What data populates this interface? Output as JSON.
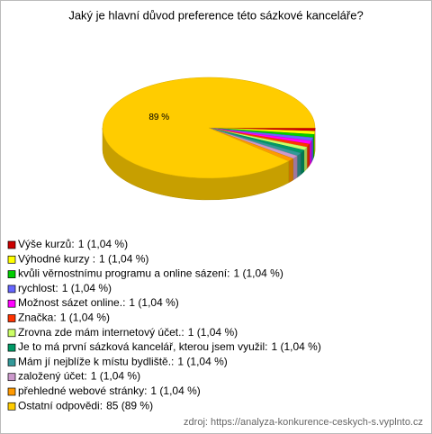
{
  "chart_data": {
    "type": "pie",
    "title": "Jaký je hlavní důvod preference této sázkové kanceláře?",
    "categories": [
      "Výše kurzů:",
      "Výhodné kurzy :",
      "kvůli věrnostnímu programu a online sázení:",
      "rychlost:",
      "Možnost sázet online.:",
      "Značka:",
      "Zrovna zde mám internetový účet.:",
      "Je to má první sázková kancelář, kterou jsem využil:",
      "Mám jí nejblíže k místu bydliště.:",
      "založený účet:",
      "přehledné webové stránky:",
      "Ostatní odpovědi:"
    ],
    "values": [
      1,
      1,
      1,
      1,
      1,
      1,
      1,
      1,
      1,
      1,
      1,
      85
    ],
    "value_labels": [
      "1 (1,04 %)",
      "1 (1,04 %)",
      "1 (1,04 %)",
      "1 (1,04 %)",
      "1 (1,04 %)",
      "1 (1,04 %)",
      "1 (1,04 %)",
      "1 (1,04 %)",
      "1 (1,04 %)",
      "1 (1,04 %)",
      "1 (1,04 %)",
      "85 (89 %)"
    ],
    "slice_labels": [
      null,
      null,
      null,
      null,
      null,
      null,
      null,
      null,
      null,
      null,
      null,
      "89 %"
    ],
    "colors": [
      "#cc0000",
      "#ffff00",
      "#00cc00",
      "#6666ff",
      "#ff00ff",
      "#ff3300",
      "#ccff66",
      "#009966",
      "#339999",
      "#cc99cc",
      "#ff9900",
      "#ffcc00"
    ],
    "source": "zdroj: https://analyza-konkurence-ceskych-s.vyplnto.cz"
  }
}
